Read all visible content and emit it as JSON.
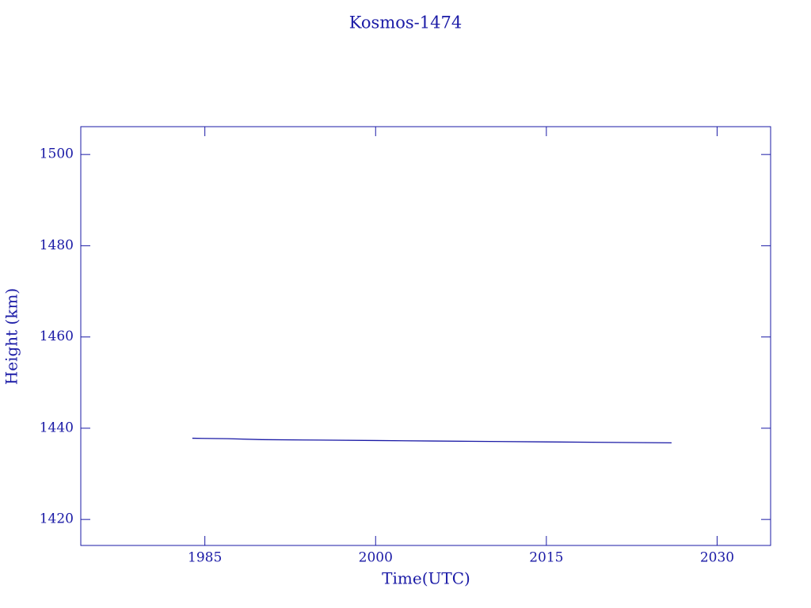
{
  "chart_data": {
    "type": "line",
    "title": "Kosmos-1474",
    "x_label": "Time(UTC)",
    "y_label": "Height (km)",
    "x": [
      1983.9,
      1987,
      1990,
      1995,
      2000,
      2005,
      2010,
      2015,
      2020,
      2026
    ],
    "series": [
      {
        "name": "Height",
        "color": "#1a1aa6",
        "values": [
          1437.8,
          1437.7,
          1437.5,
          1437.4,
          1437.3,
          1437.2,
          1437.1,
          1437.0,
          1436.9,
          1436.8
        ]
      }
    ],
    "xlim": [
      1974.1,
      2034.7
    ],
    "xticks": [
      1985,
      2000,
      2015,
      2030
    ],
    "ylim": [
      1414.3,
      1506.1
    ],
    "yticks": [
      1420,
      1440,
      1460,
      1480,
      1500
    ]
  }
}
